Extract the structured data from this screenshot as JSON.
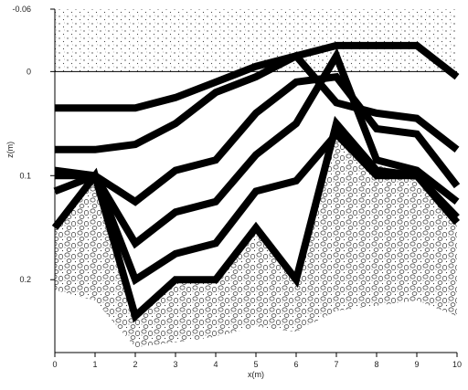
{
  "chart_data": {
    "type": "line",
    "xlabel": "x(m)",
    "ylabel": "z(m)",
    "xlim": [
      0,
      10
    ],
    "ylim": [
      -0.06,
      0.27
    ],
    "y_inverted": true,
    "grid": false,
    "x_ticks": [
      0,
      1,
      2,
      3,
      4,
      5,
      6,
      7,
      8,
      9,
      10
    ],
    "x_tick_labels": [
      "0",
      "1",
      "2",
      "3",
      "4",
      "5",
      "6",
      "7",
      "8",
      "9",
      "10"
    ],
    "y_ticks": [
      -0.06,
      0,
      0.1,
      0.2
    ],
    "y_tick_labels": [
      "-0.06",
      "0",
      "0.1",
      "0.2"
    ],
    "reference_line": {
      "z": 0
    },
    "surface": {
      "x": [
        0,
        1,
        2,
        3,
        4,
        5,
        6,
        7,
        8,
        9,
        10
      ],
      "z": [
        -0.06,
        -0.06,
        -0.06,
        -0.06,
        -0.06,
        -0.06,
        -0.06,
        -0.06,
        -0.06,
        -0.06,
        -0.06
      ]
    },
    "substrate_top": {
      "x": [
        0,
        1,
        2,
        3,
        4,
        5,
        6,
        7,
        8,
        9,
        10
      ],
      "z": [
        0.15,
        0.1,
        0.235,
        0.2,
        0.2,
        0.15,
        0.2,
        0.05,
        0.09,
        0.1,
        0.145
      ]
    },
    "substrate_bottom": {
      "x": [
        0,
        1,
        2,
        3,
        4,
        5,
        6,
        7,
        8,
        9,
        10
      ],
      "z": [
        0.21,
        0.22,
        0.265,
        0.26,
        0.255,
        0.245,
        0.25,
        0.23,
        0.225,
        0.22,
        0.235
      ]
    },
    "series": [
      {
        "x": [
          0,
          2,
          3,
          4,
          5,
          6,
          7,
          8,
          9,
          10
        ],
        "z": [
          0.035,
          0.035,
          0.025,
          0.01,
          -0.005,
          -0.015,
          -0.025,
          -0.025,
          -0.025,
          0.005
        ]
      },
      {
        "x": [
          0,
          1,
          2,
          3,
          4,
          5,
          6,
          7,
          8,
          9,
          10
        ],
        "z": [
          0.075,
          0.075,
          0.07,
          0.05,
          0.02,
          0.005,
          -0.015,
          0.03,
          0.04,
          0.045,
          0.075
        ]
      },
      {
        "x": [
          0,
          1,
          2,
          3,
          4,
          5,
          6,
          7,
          8,
          9,
          10
        ],
        "z": [
          0.095,
          0.1,
          0.125,
          0.095,
          0.085,
          0.04,
          0.01,
          0.005,
          0.055,
          0.06,
          0.11
        ]
      },
      {
        "x": [
          0,
          1,
          2,
          3,
          4,
          5,
          6,
          7,
          8,
          9,
          10
        ],
        "z": [
          0.1,
          0.1,
          0.165,
          0.135,
          0.125,
          0.08,
          0.05,
          -0.015,
          0.085,
          0.095,
          0.125
        ]
      },
      {
        "x": [
          0,
          1,
          2,
          3,
          4,
          5,
          6,
          7,
          8,
          9,
          10
        ],
        "z": [
          0.115,
          0.1,
          0.2,
          0.175,
          0.165,
          0.115,
          0.105,
          0.06,
          0.1,
          0.1,
          0.14
        ]
      },
      {
        "x": [
          0,
          1,
          2,
          3,
          4,
          5,
          6,
          7,
          8,
          9,
          10
        ],
        "z": [
          0.15,
          0.1,
          0.235,
          0.2,
          0.2,
          0.15,
          0.2,
          0.05,
          0.095,
          0.1,
          0.145
        ]
      }
    ]
  }
}
